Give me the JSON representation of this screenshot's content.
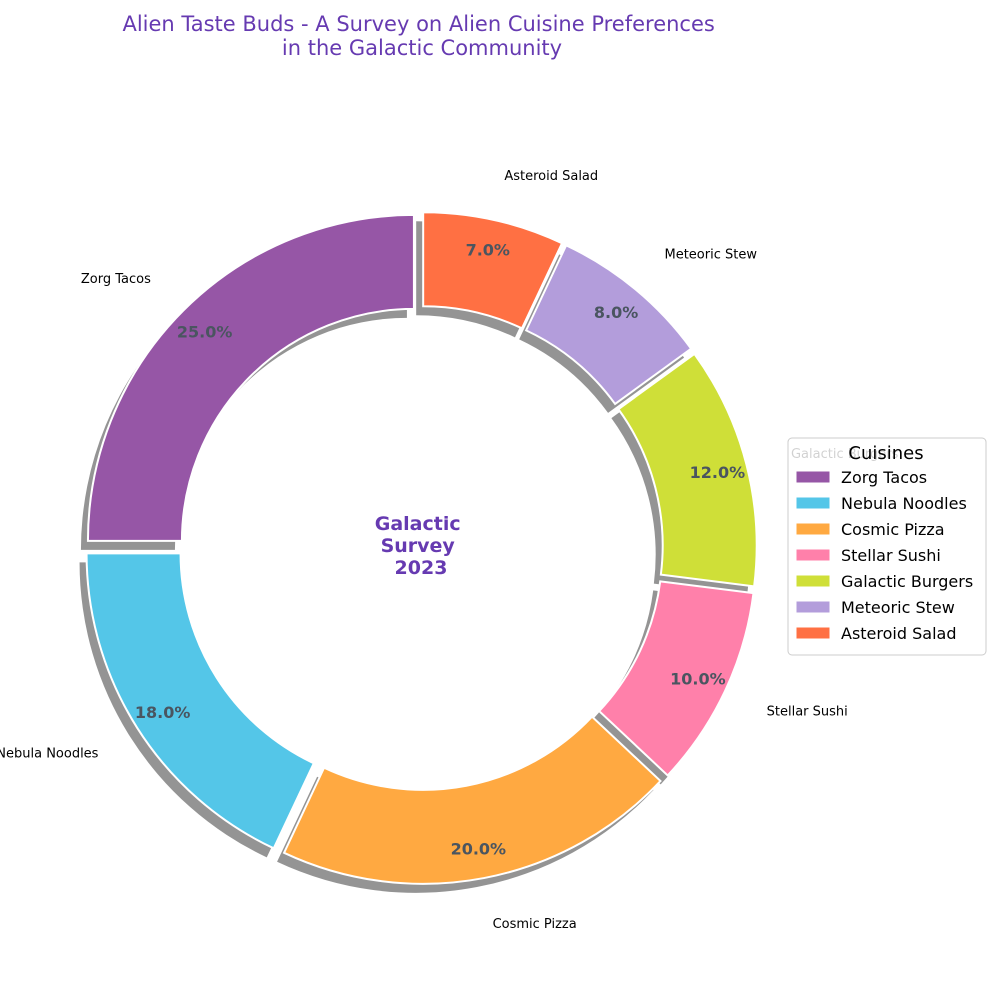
{
  "chart_data": {
    "type": "pie",
    "style": "donut",
    "title_lines": [
      "Alien Taste Buds - A Survey on Alien Cuisine Preferences",
      "in the Galactic Community"
    ],
    "center_text_lines": [
      "Galactic",
      "Survey",
      "2023"
    ],
    "categories": [
      "Zorg Tacos",
      "Nebula Noodles",
      "Cosmic Pizza",
      "Stellar Sushi",
      "Galactic Burgers",
      "Meteoric Stew",
      "Asteroid Salad"
    ],
    "values": [
      25,
      18,
      20,
      10,
      12,
      8,
      7
    ],
    "percent_labels": [
      "25.0%",
      "18.0%",
      "20.0%",
      "10.0%",
      "12.0%",
      "8.0%",
      "7.0%"
    ],
    "colors": [
      "#9656a6",
      "#54c6e8",
      "#ffa941",
      "#ff80aa",
      "#cfdf38",
      "#b39ddb",
      "#ff7043"
    ],
    "start_angle_deg": 90,
    "direction": "counterclockwise",
    "shadow": true,
    "legend": {
      "title": "Cuisines",
      "placement": "center-right",
      "entries": [
        "Zorg Tacos",
        "Nebula Noodles",
        "Cosmic Pizza",
        "Stellar Sushi",
        "Galactic Burgers",
        "Meteoric Stew",
        "Asteroid Salad"
      ]
    }
  }
}
